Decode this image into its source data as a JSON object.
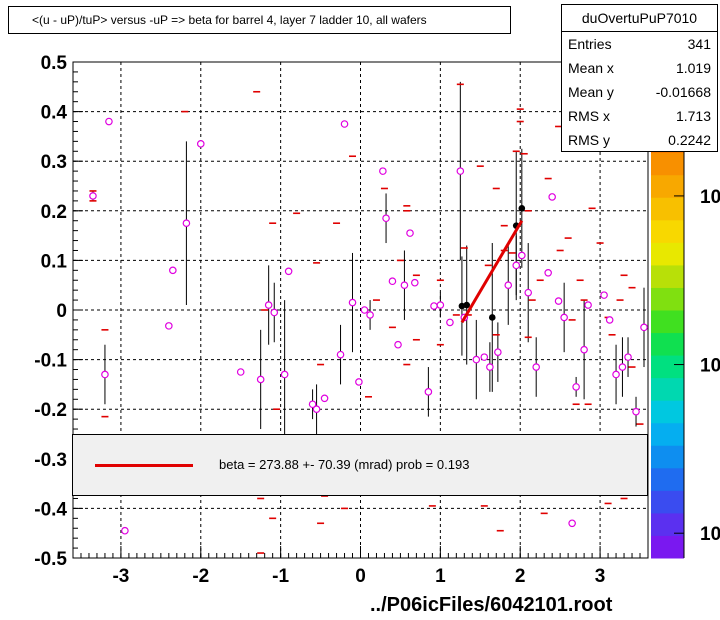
{
  "title": "<(u - uP)/tuP> versus  -uP => beta for barrel 4, layer 7 ladder 10, all wafers",
  "stats": {
    "name": "duOvertuPuP7010",
    "rows": [
      {
        "label": "Entries",
        "value": "341"
      },
      {
        "label": "Mean x",
        "value": "1.019"
      },
      {
        "label": "Mean y",
        "value": "-0.01668"
      },
      {
        "label": "RMS x",
        "value": "1.713"
      },
      {
        "label": "RMS y",
        "value": "0.2242"
      }
    ]
  },
  "fit_legend": "beta =  273.88 +- 70.39 (mrad) prob = 0.193",
  "footer": "../P06icFiles/6042101.root",
  "colors": {
    "fit": "#e00000",
    "marker": "#e000e0",
    "dash": "#e00000"
  },
  "chart_data": {
    "type": "scatter",
    "xlim": [
      -3.6,
      3.6
    ],
    "ylim": [
      -0.5,
      0.5
    ],
    "x_ticks": [
      -3,
      -2,
      -1,
      0,
      1,
      2,
      3
    ],
    "y_ticks": [
      0.5,
      0.4,
      0.3,
      0.2,
      0.1,
      0,
      -0.1,
      -0.2,
      -0.3,
      -0.4,
      -0.5
    ],
    "y_tick_labels": [
      "0.5",
      "0.4",
      "0.3",
      "0.2",
      "0.1",
      "0",
      "-0.1",
      "-0.2",
      "-0.3",
      "-0.4",
      "-0.5"
    ],
    "x_tick_labels": [
      "-3",
      "-2",
      "-1",
      "0",
      "1",
      "2",
      "3"
    ],
    "z_tick_labels": [
      "10",
      "10",
      "10"
    ],
    "z_ticks_frac": [
      0.27,
      0.61,
      0.95
    ],
    "grid": true,
    "magenta_points": [
      {
        "x": -3.35,
        "y": 0.23,
        "e": 0.01
      },
      {
        "x": -3.2,
        "y": -0.13,
        "e": 0.06
      },
      {
        "x": -3.15,
        "y": 0.38,
        "e": 0.0
      },
      {
        "x": -2.95,
        "y": -0.445,
        "e": 0.0
      },
      {
        "x": -2.4,
        "y": -0.032,
        "e": 0.0
      },
      {
        "x": -2.35,
        "y": 0.08,
        "e": 0.0
      },
      {
        "x": -2.18,
        "y": 0.175,
        "e": 0.165
      },
      {
        "x": -2.0,
        "y": 0.335,
        "e": 0.0
      },
      {
        "x": -1.5,
        "y": -0.125,
        "e": 0.0
      },
      {
        "x": -1.25,
        "y": -0.14,
        "e": 0.1
      },
      {
        "x": -1.15,
        "y": 0.01,
        "e": 0.08
      },
      {
        "x": -1.08,
        "y": -0.005,
        "e": 0.06
      },
      {
        "x": -0.95,
        "y": -0.13,
        "e": 0.15
      },
      {
        "x": -0.9,
        "y": 0.078,
        "e": 0.0
      },
      {
        "x": -0.6,
        "y": -0.19,
        "e": 0.03
      },
      {
        "x": -0.55,
        "y": -0.2,
        "e": 0.05
      },
      {
        "x": -0.45,
        "y": -0.178,
        "e": 0.0
      },
      {
        "x": -0.25,
        "y": -0.09,
        "e": 0.06
      },
      {
        "x": -0.2,
        "y": 0.375,
        "e": 0.0
      },
      {
        "x": -0.1,
        "y": 0.015,
        "e": 0.1
      },
      {
        "x": -0.02,
        "y": -0.145,
        "e": 0.0
      },
      {
        "x": 0.05,
        "y": 0.0,
        "e": 0.0
      },
      {
        "x": 0.12,
        "y": -0.01,
        "e": 0.03
      },
      {
        "x": 0.28,
        "y": 0.28,
        "e": 0.0
      },
      {
        "x": 0.32,
        "y": 0.185,
        "e": 0.05
      },
      {
        "x": 0.4,
        "y": 0.058,
        "e": 0.0
      },
      {
        "x": 0.47,
        "y": -0.07,
        "e": 0.0
      },
      {
        "x": 0.55,
        "y": 0.05,
        "e": 0.07
      },
      {
        "x": 0.62,
        "y": 0.155,
        "e": 0.0
      },
      {
        "x": 0.68,
        "y": 0.055,
        "e": 0.0
      },
      {
        "x": 0.85,
        "y": -0.165,
        "e": 0.05
      },
      {
        "x": 0.92,
        "y": 0.008,
        "e": 0.0
      },
      {
        "x": 1.0,
        "y": 0.01,
        "e": 0.025
      },
      {
        "x": 1.12,
        "y": -0.025,
        "e": 0.0
      },
      {
        "x": 1.25,
        "y": 0.28,
        "e": 0.18
      },
      {
        "x": 1.3,
        "y": -0.015,
        "e": 0.0
      },
      {
        "x": 1.45,
        "y": -0.1,
        "e": 0.08
      },
      {
        "x": 1.55,
        "y": -0.095,
        "e": 0.0
      },
      {
        "x": 1.62,
        "y": -0.115,
        "e": 0.05
      },
      {
        "x": 1.72,
        "y": -0.085,
        "e": 0.06
      },
      {
        "x": 1.85,
        "y": 0.05,
        "e": 0.08
      },
      {
        "x": 1.95,
        "y": 0.09,
        "e": 0.06
      },
      {
        "x": 2.02,
        "y": 0.11,
        "e": 0.0
      },
      {
        "x": 2.1,
        "y": 0.035,
        "e": 0.1
      },
      {
        "x": 2.2,
        "y": -0.115,
        "e": 0.06
      },
      {
        "x": 2.35,
        "y": 0.075,
        "e": 0.0
      },
      {
        "x": 2.4,
        "y": 0.228,
        "e": 0.0
      },
      {
        "x": 2.48,
        "y": 0.018,
        "e": 0.0
      },
      {
        "x": 2.55,
        "y": -0.015,
        "e": 0.07
      },
      {
        "x": 2.65,
        "y": -0.43,
        "e": 0.0
      },
      {
        "x": 2.7,
        "y": -0.155,
        "e": 0.02
      },
      {
        "x": 2.8,
        "y": -0.08,
        "e": 0.1
      },
      {
        "x": 2.85,
        "y": 0.01,
        "e": 0.0
      },
      {
        "x": 3.05,
        "y": 0.03,
        "e": 0.0
      },
      {
        "x": 3.12,
        "y": -0.02,
        "e": 0.0
      },
      {
        "x": 3.2,
        "y": -0.13,
        "e": 0.06
      },
      {
        "x": 3.28,
        "y": -0.115,
        "e": 0.06
      },
      {
        "x": 3.35,
        "y": -0.095,
        "e": 0.04
      },
      {
        "x": 3.45,
        "y": -0.205,
        "e": 0.03
      },
      {
        "x": 3.55,
        "y": -0.035,
        "e": 0.08
      }
    ],
    "black_points": [
      {
        "x": 1.27,
        "y": 0.008,
        "e": 0.1
      },
      {
        "x": 1.33,
        "y": 0.01,
        "e": 0.12
      },
      {
        "x": 1.65,
        "y": -0.015,
        "e": 0.15
      },
      {
        "x": 1.95,
        "y": 0.17,
        "e": 0.15
      },
      {
        "x": 2.02,
        "y": 0.205,
        "e": 0.12
      }
    ],
    "dashes": [
      {
        "x": -3.35,
        "y": 0.24
      },
      {
        "x": -3.35,
        "y": 0.22
      },
      {
        "x": -3.2,
        "y": -0.04
      },
      {
        "x": -3.2,
        "y": -0.215
      },
      {
        "x": -2.2,
        "y": 0.4
      },
      {
        "x": -1.3,
        "y": 0.44
      },
      {
        "x": -1.2,
        "y": 0.0
      },
      {
        "x": -1.25,
        "y": -0.38
      },
      {
        "x": -1.25,
        "y": -0.49
      },
      {
        "x": -1.1,
        "y": -0.42
      },
      {
        "x": -1.05,
        "y": -0.2
      },
      {
        "x": -1.1,
        "y": 0.175
      },
      {
        "x": -0.8,
        "y": 0.195
      },
      {
        "x": -0.55,
        "y": 0.095
      },
      {
        "x": -0.5,
        "y": -0.11
      },
      {
        "x": -0.45,
        "y": -0.375
      },
      {
        "x": -0.5,
        "y": -0.43
      },
      {
        "x": -0.3,
        "y": 0.175
      },
      {
        "x": -0.2,
        "y": -0.4
      },
      {
        "x": -0.1,
        "y": 0.31
      },
      {
        "x": 0.1,
        "y": -0.175
      },
      {
        "x": 0.2,
        "y": 0.02
      },
      {
        "x": 0.3,
        "y": 0.245
      },
      {
        "x": 0.4,
        "y": -0.035
      },
      {
        "x": 0.5,
        "y": 0.1
      },
      {
        "x": 0.58,
        "y": 0.21
      },
      {
        "x": 0.58,
        "y": 0.2
      },
      {
        "x": 0.58,
        "y": -0.11
      },
      {
        "x": 0.7,
        "y": 0.07
      },
      {
        "x": 0.7,
        "y": -0.06
      },
      {
        "x": 0.9,
        "y": -0.395
      },
      {
        "x": 1.0,
        "y": -0.07
      },
      {
        "x": 1.0,
        "y": 0.06
      },
      {
        "x": 1.2,
        "y": -0.01
      },
      {
        "x": 1.25,
        "y": 0.455
      },
      {
        "x": 1.3,
        "y": 0.125
      },
      {
        "x": 1.35,
        "y": -0.01
      },
      {
        "x": 1.5,
        "y": 0.29
      },
      {
        "x": 1.55,
        "y": -0.395
      },
      {
        "x": 1.6,
        "y": 0.09
      },
      {
        "x": 1.7,
        "y": 0.245
      },
      {
        "x": 1.7,
        "y": -0.05
      },
      {
        "x": 1.75,
        "y": -0.445
      },
      {
        "x": 1.8,
        "y": 0.17
      },
      {
        "x": 1.8,
        "y": 0.12
      },
      {
        "x": 1.9,
        "y": 0.115
      },
      {
        "x": 1.95,
        "y": 0.32
      },
      {
        "x": 2.0,
        "y": 0.405
      },
      {
        "x": 2.0,
        "y": 0.38
      },
      {
        "x": 2.05,
        "y": 0.315
      },
      {
        "x": 2.1,
        "y": -0.055
      },
      {
        "x": 2.1,
        "y": 0.2
      },
      {
        "x": 2.15,
        "y": 0.02
      },
      {
        "x": 2.25,
        "y": 0.06
      },
      {
        "x": 2.3,
        "y": -0.41
      },
      {
        "x": 2.35,
        "y": 0.265
      },
      {
        "x": 2.48,
        "y": 0.37
      },
      {
        "x": 2.5,
        "y": 0.12
      },
      {
        "x": 2.6,
        "y": 0.145
      },
      {
        "x": 2.65,
        "y": -0.02
      },
      {
        "x": 2.7,
        "y": -0.19
      },
      {
        "x": 2.75,
        "y": 0.06
      },
      {
        "x": 2.8,
        "y": 0.02
      },
      {
        "x": 2.85,
        "y": -0.19
      },
      {
        "x": 2.9,
        "y": 0.205
      },
      {
        "x": 3.0,
        "y": 0.135
      },
      {
        "x": 3.05,
        "y": 0.33
      },
      {
        "x": 3.1,
        "y": -0.015
      },
      {
        "x": 3.15,
        "y": -0.05
      },
      {
        "x": 3.25,
        "y": 0.02
      },
      {
        "x": 3.3,
        "y": -0.38
      },
      {
        "x": 3.4,
        "y": -0.115
      },
      {
        "x": 3.4,
        "y": 0.045
      },
      {
        "x": 3.5,
        "y": -0.23
      },
      {
        "x": 3.1,
        "y": -0.39
      },
      {
        "x": 3.3,
        "y": 0.07
      }
    ],
    "fit": {
      "x1": 1.27,
      "y1": -0.025,
      "x2": 2.02,
      "y2": 0.18
    },
    "palette": [
      "#7a18f0",
      "#5b30f0",
      "#3a4cf0",
      "#1f6cf0",
      "#0e8ef0",
      "#05aef0",
      "#00c8e0",
      "#00d8b0",
      "#00e080",
      "#10e050",
      "#40e020",
      "#80e010",
      "#b8e008",
      "#e8e800",
      "#f8d800",
      "#f8c000",
      "#f8a800",
      "#f89000",
      "#f87000",
      "#f85000",
      "#f83000",
      "#f01010"
    ]
  }
}
